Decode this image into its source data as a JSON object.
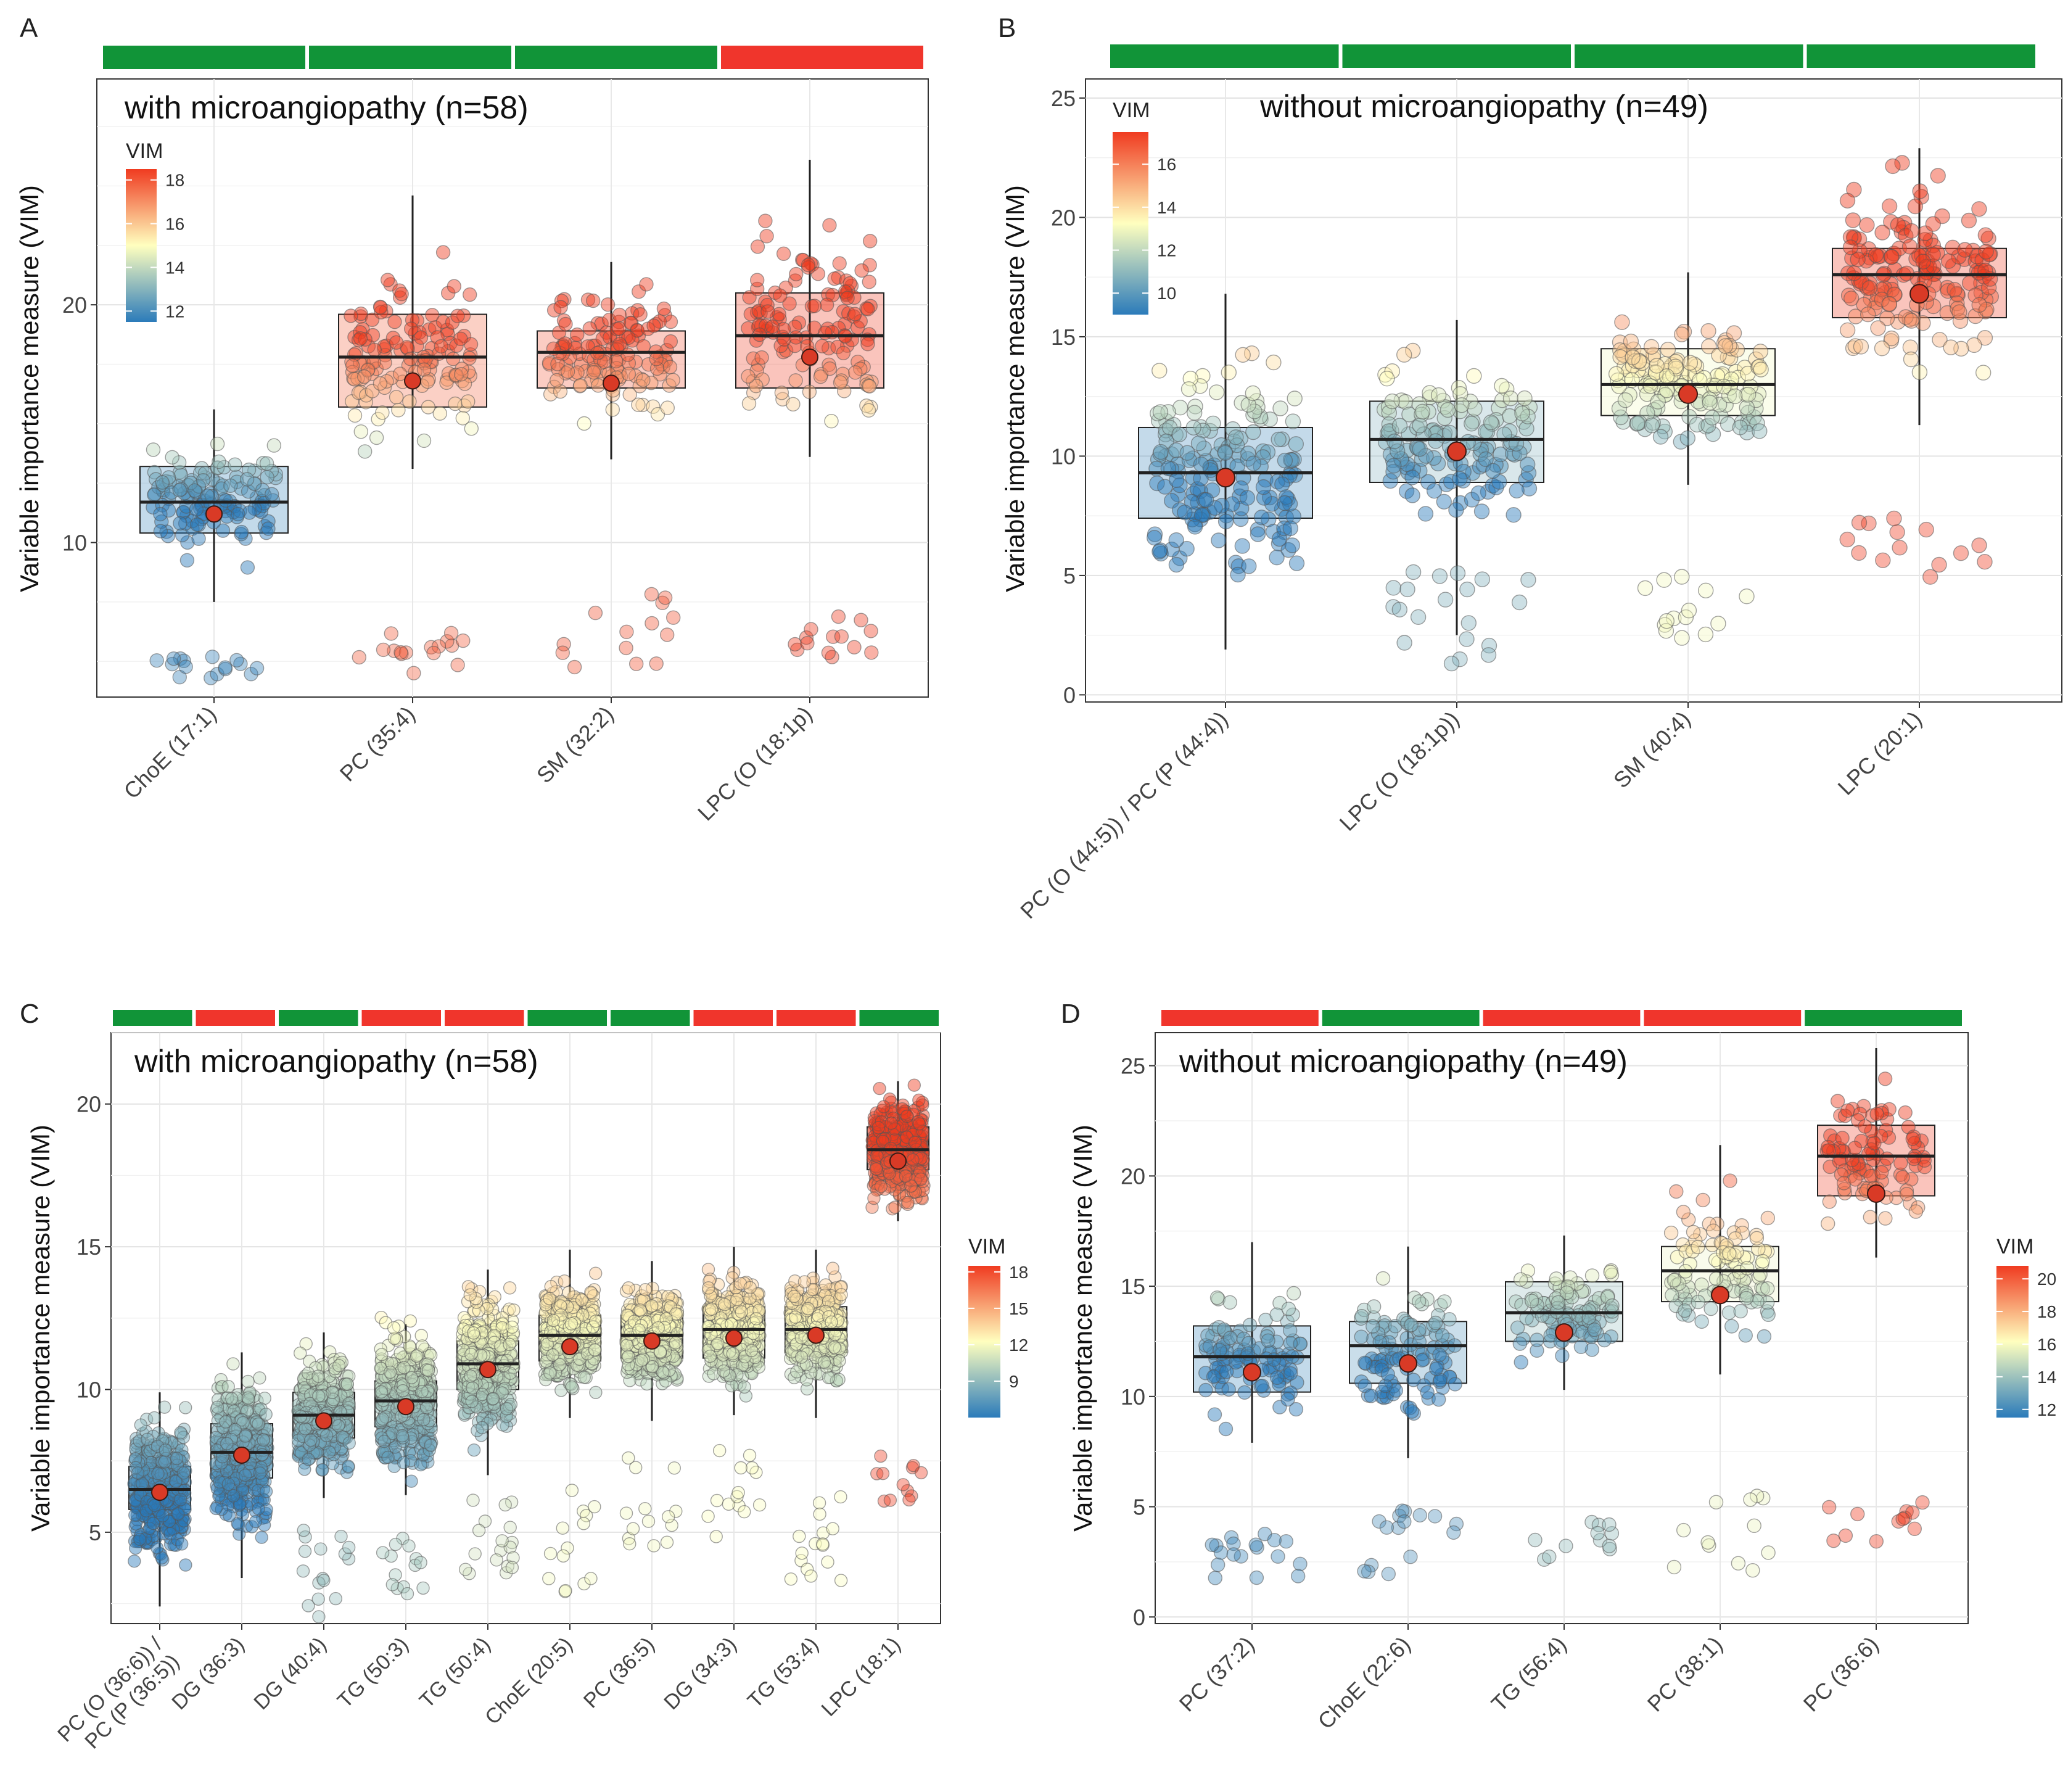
{
  "figure": {
    "colors": {
      "group_good": "#119438",
      "group_bad": "#f0352c",
      "mean_dot": "#d93a26",
      "grid": "#e6e6e6",
      "axis": "#333333",
      "scale_low": "#2b7bba",
      "scale_mid": "#ffffbf",
      "scale_high": "#f03b20"
    }
  },
  "chart_data": [
    {
      "panel": "A",
      "type": "box",
      "title": "with microangiopathy (n=58)",
      "ylabel": "Variable importance measure (VIM)",
      "ylim": [
        3.5,
        29.5
      ],
      "yticks": [
        10,
        20
      ],
      "legend": {
        "title": "VIM",
        "ticks": [
          12,
          14,
          16,
          18
        ],
        "min": 11.5,
        "max": 18.5,
        "position": "top-left"
      },
      "categories": [
        "ChoE (17:1)",
        "PC (35:4)",
        "SM (32:2)",
        "LPC (O (18:1p)"
      ],
      "group_bars": [
        "green",
        "green",
        "green",
        "red"
      ],
      "boxes": [
        {
          "q1": 10.4,
          "median": 11.7,
          "q3": 13.2,
          "whisker_low": 7.5,
          "whisker_high": 15.6,
          "mean": 11.2,
          "high_min": 8.0,
          "high_max": 16.0,
          "low_min": 4.3,
          "low_max": 5.8,
          "n_high": 140,
          "n_low": 16
        },
        {
          "q1": 15.7,
          "median": 17.8,
          "q3": 19.6,
          "whisker_low": 13.1,
          "whisker_high": 24.6,
          "mean": 16.8,
          "high_min": 13.0,
          "high_max": 24.7,
          "low_min": 4.3,
          "low_max": 6.2,
          "n_high": 140,
          "n_low": 16
        },
        {
          "q1": 16.5,
          "median": 18.0,
          "q3": 18.9,
          "whisker_low": 13.5,
          "whisker_high": 21.8,
          "mean": 16.7,
          "high_min": 12.8,
          "high_max": 21.9,
          "low_min": 4.5,
          "low_max": 8.0,
          "n_high": 140,
          "n_low": 14
        },
        {
          "q1": 16.5,
          "median": 18.7,
          "q3": 20.5,
          "whisker_low": 13.6,
          "whisker_high": 26.1,
          "mean": 17.8,
          "high_min": 13.6,
          "high_max": 28.1,
          "low_min": 5.0,
          "low_max": 7.0,
          "n_high": 140,
          "n_low": 14
        }
      ]
    },
    {
      "panel": "B",
      "type": "box",
      "title": "without microangiopathy (n=49)",
      "ylabel": "Variable importance measure (VIM)",
      "ylim": [
        -0.3,
        25.8
      ],
      "yticks": [
        0,
        5,
        10,
        15,
        20,
        25
      ],
      "legend": {
        "title": "VIM",
        "ticks": [
          10,
          12,
          14,
          16
        ],
        "min": 9.0,
        "max": 17.5,
        "position": "top-left"
      },
      "categories": [
        "PC (O (44:5)) / PC (P (44:4))",
        "LPC (O (18:1p))",
        "SM (40:4)",
        "LPC (20:1)"
      ],
      "group_bars": [
        "green",
        "green",
        "green",
        "green"
      ],
      "boxes": [
        {
          "q1": 7.4,
          "median": 9.3,
          "q3": 11.2,
          "whisker_low": 1.9,
          "whisker_high": 16.8,
          "mean": 9.1,
          "high_min": 0.9,
          "high_max": 17.4,
          "low_min": 0.9,
          "low_max": 0.9,
          "n_high": 180,
          "n_low": 0
        },
        {
          "q1": 8.9,
          "median": 10.7,
          "q3": 12.3,
          "whisker_low": 2.5,
          "whisker_high": 15.7,
          "mean": 10.2,
          "high_min": 6.0,
          "high_max": 15.7,
          "low_min": 1.1,
          "low_max": 5.4,
          "n_high": 150,
          "n_low": 20
        },
        {
          "q1": 11.7,
          "median": 13.0,
          "q3": 14.5,
          "whisker_low": 8.8,
          "whisker_high": 17.7,
          "mean": 12.6,
          "high_min": 8.6,
          "high_max": 17.8,
          "low_min": 2.2,
          "low_max": 5.0,
          "n_high": 160,
          "n_low": 14
        },
        {
          "q1": 15.8,
          "median": 17.6,
          "q3": 18.7,
          "whisker_low": 11.3,
          "whisker_high": 22.9,
          "mean": 16.8,
          "high_min": 11.3,
          "high_max": 24.5,
          "low_min": 4.9,
          "low_max": 7.7,
          "n_high": 170,
          "n_low": 14
        }
      ]
    },
    {
      "panel": "C",
      "type": "box",
      "title": "with microangiopathy (n=58)",
      "ylabel": "Variable importance measure (VIM)",
      "ylim": [
        1.8,
        22.5
      ],
      "yticks": [
        5,
        10,
        15,
        20
      ],
      "legend": {
        "title": "VIM",
        "ticks": [
          9,
          12,
          15,
          18
        ],
        "min": 6.0,
        "max": 18.5,
        "position": "right"
      },
      "categories": [
        "PC (O (36:6)) / PC (P (36:5))",
        "DG (36:3)",
        "DG (40:4)",
        "TG (50:3)",
        "TG (50:4)",
        "ChoE (20:5)",
        "PC (36:5)",
        "DG (34:3)",
        "TG (53:4)",
        "LPC (18:1)"
      ],
      "category_lines": [
        [
          "PC (O (36:6)) /",
          "PC (P (36:5))"
        ],
        [
          "DG (36:3)"
        ],
        [
          "DG (40:4)"
        ],
        [
          "TG (50:3)"
        ],
        [
          "TG (50:4)"
        ],
        [
          "ChoE (20:5)"
        ],
        [
          "PC (36:5)"
        ],
        [
          "DG (34:3)"
        ],
        [
          "TG (53:4)"
        ],
        [
          "LPC (18:1)"
        ]
      ],
      "group_bars": [
        "green",
        "red",
        "green",
        "red",
        "red",
        "green",
        "green",
        "red",
        "red",
        "green"
      ],
      "boxes": [
        {
          "q1": 5.8,
          "median": 6.5,
          "q3": 7.3,
          "whisker_low": 2.4,
          "whisker_high": 9.9,
          "mean": 6.4,
          "high_min": 2.4,
          "high_max": 10.2,
          "low_min": 2.4,
          "low_max": 2.4,
          "n_high": 420,
          "n_low": 0
        },
        {
          "q1": 6.9,
          "median": 7.8,
          "q3": 8.8,
          "whisker_low": 3.4,
          "whisker_high": 11.3,
          "mean": 7.7,
          "high_min": 3.3,
          "high_max": 12.0,
          "low_min": 3.3,
          "low_max": 3.3,
          "n_high": 420,
          "n_low": 0
        },
        {
          "q1": 8.3,
          "median": 9.1,
          "q3": 9.9,
          "whisker_low": 6.2,
          "whisker_high": 12.0,
          "mean": 8.9,
          "high_min": 5.8,
          "high_max": 12.5,
          "low_min": 2.0,
          "low_max": 5.2,
          "n_high": 400,
          "n_low": 16
        },
        {
          "q1": 8.7,
          "median": 9.6,
          "q3": 10.3,
          "whisker_low": 6.3,
          "whisker_high": 12.3,
          "mean": 9.4,
          "high_min": 5.6,
          "high_max": 13.4,
          "low_min": 2.7,
          "low_max": 5.0,
          "n_high": 400,
          "n_low": 14
        },
        {
          "q1": 10.0,
          "median": 10.9,
          "q3": 11.7,
          "whisker_low": 7.0,
          "whisker_high": 14.2,
          "mean": 10.7,
          "high_min": 6.8,
          "high_max": 15.2,
          "low_min": 3.2,
          "low_max": 6.6,
          "n_high": 400,
          "n_low": 18
        },
        {
          "q1": 11.0,
          "median": 11.9,
          "q3": 12.6,
          "whisker_low": 9.0,
          "whisker_high": 14.9,
          "mean": 11.5,
          "high_min": 9.0,
          "high_max": 14.9,
          "low_min": 2.7,
          "low_max": 6.5,
          "n_high": 400,
          "n_low": 14
        },
        {
          "q1": 11.1,
          "median": 11.9,
          "q3": 12.6,
          "whisker_low": 8.9,
          "whisker_high": 14.5,
          "mean": 11.7,
          "high_min": 8.8,
          "high_max": 14.8,
          "low_min": 4.5,
          "low_max": 7.9,
          "n_high": 400,
          "n_low": 14
        },
        {
          "q1": 11.1,
          "median": 12.1,
          "q3": 12.9,
          "whisker_low": 9.1,
          "whisker_high": 15.0,
          "mean": 11.8,
          "high_min": 8.9,
          "high_max": 15.3,
          "low_min": 4.8,
          "low_max": 7.9,
          "n_high": 400,
          "n_low": 14
        },
        {
          "q1": 11.3,
          "median": 12.1,
          "q3": 12.9,
          "whisker_low": 9.0,
          "whisker_high": 14.9,
          "mean": 11.9,
          "high_min": 8.9,
          "high_max": 15.0,
          "low_min": 3.2,
          "low_max": 6.3,
          "n_high": 400,
          "n_low": 16
        },
        {
          "q1": 17.7,
          "median": 18.4,
          "q3": 19.2,
          "whisker_low": 15.9,
          "whisker_high": 20.8,
          "mean": 18.0,
          "high_min": 14.9,
          "high_max": 21.4,
          "low_min": 6.0,
          "low_max": 7.7,
          "n_high": 420,
          "n_low": 12
        }
      ]
    },
    {
      "panel": "D",
      "type": "box",
      "title": "without microangiopathy (n=49)",
      "ylabel": "Variable importance measure (VIM)",
      "ylim": [
        -0.3,
        26.5
      ],
      "yticks": [
        0,
        5,
        10,
        15,
        20,
        25
      ],
      "legend": {
        "title": "VIM",
        "ticks": [
          12,
          14,
          16,
          18,
          20
        ],
        "min": 11.5,
        "max": 20.8,
        "position": "right"
      },
      "categories": [
        "PC (37:2)",
        "ChoE (22:6)",
        "TG (56:4)",
        "PC (38:1)",
        "PC (36:6)"
      ],
      "group_bars": [
        "red",
        "green",
        "red",
        "red",
        "green"
      ],
      "boxes": [
        {
          "q1": 10.2,
          "median": 11.8,
          "q3": 13.2,
          "whisker_low": 7.9,
          "whisker_high": 17.0,
          "mean": 11.1,
          "high_min": 7.9,
          "high_max": 17.0,
          "low_min": 1.7,
          "low_max": 3.8,
          "n_high": 110,
          "n_low": 18
        },
        {
          "q1": 10.6,
          "median": 12.3,
          "q3": 13.4,
          "whisker_low": 7.2,
          "whisker_high": 16.8,
          "mean": 11.5,
          "high_min": 7.2,
          "high_max": 16.9,
          "low_min": 1.0,
          "low_max": 4.9,
          "n_high": 110,
          "n_low": 16
        },
        {
          "q1": 12.5,
          "median": 13.8,
          "q3": 15.2,
          "whisker_low": 10.3,
          "whisker_high": 17.3,
          "mean": 12.9,
          "high_min": 10.1,
          "high_max": 17.4,
          "low_min": 2.6,
          "low_max": 4.4,
          "n_high": 110,
          "n_low": 12
        },
        {
          "q1": 14.3,
          "median": 15.7,
          "q3": 16.8,
          "whisker_low": 11.0,
          "whisker_high": 21.4,
          "mean": 14.6,
          "high_min": 10.9,
          "high_max": 21.4,
          "low_min": 1.8,
          "low_max": 6.0,
          "n_high": 110,
          "n_low": 12
        },
        {
          "q1": 19.1,
          "median": 20.9,
          "q3": 22.3,
          "whisker_low": 16.3,
          "whisker_high": 25.8,
          "mean": 19.2,
          "high_min": 16.3,
          "high_max": 25.8,
          "low_min": 3.4,
          "low_max": 5.8,
          "n_high": 100,
          "n_low": 12
        }
      ]
    }
  ]
}
